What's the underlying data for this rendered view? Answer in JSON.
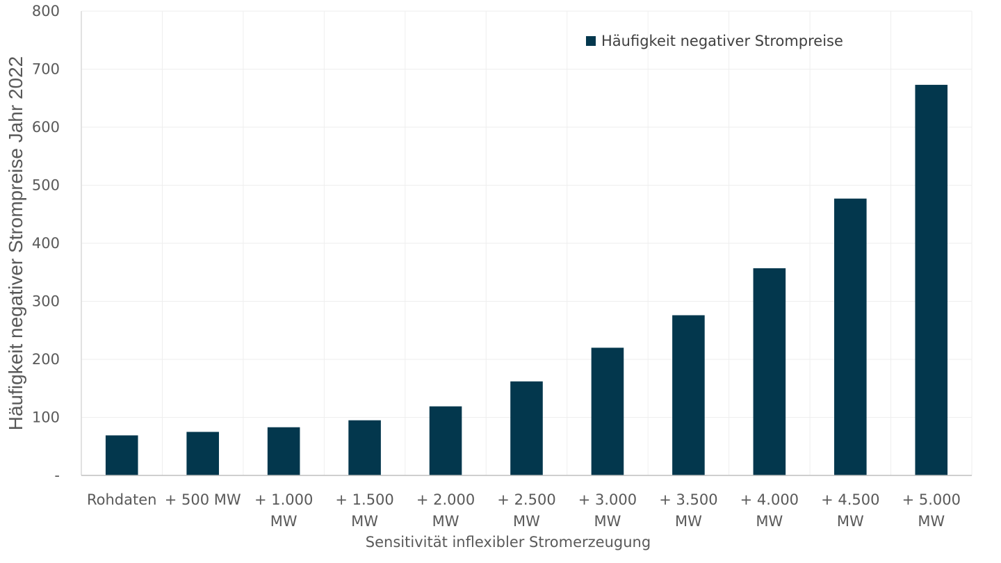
{
  "chart_data": {
    "type": "bar",
    "title": "",
    "xlabel": "Sensitivität inflexibler Stromerzeugung",
    "ylabel": "Häufigkeit negativer Strompreise Jahr 2022",
    "categories": [
      [
        "Rohdaten"
      ],
      [
        "+ 500 MW"
      ],
      [
        "+ 1.000",
        "MW"
      ],
      [
        "+ 1.500",
        "MW"
      ],
      [
        "+ 2.000",
        "MW"
      ],
      [
        "+ 2.500",
        "MW"
      ],
      [
        "+ 3.000",
        "MW"
      ],
      [
        "+ 3.500",
        "MW"
      ],
      [
        "+ 4.000",
        "MW"
      ],
      [
        "+ 4.500",
        "MW"
      ],
      [
        "+ 5.000",
        "MW"
      ]
    ],
    "series": [
      {
        "name": "Häufigkeit negativer Strompreise",
        "color": "#03374d",
        "values": [
          69,
          75,
          83,
          95,
          119,
          162,
          220,
          276,
          357,
          477,
          673
        ]
      }
    ],
    "ylim": [
      0,
      800
    ],
    "yticks": [
      0,
      100,
      200,
      300,
      400,
      500,
      600,
      700,
      800
    ],
    "ytick_labels": [
      "-",
      "100",
      "200",
      "300",
      "400",
      "500",
      "600",
      "700",
      "800"
    ],
    "grid": true,
    "legend_position": "top-right"
  }
}
